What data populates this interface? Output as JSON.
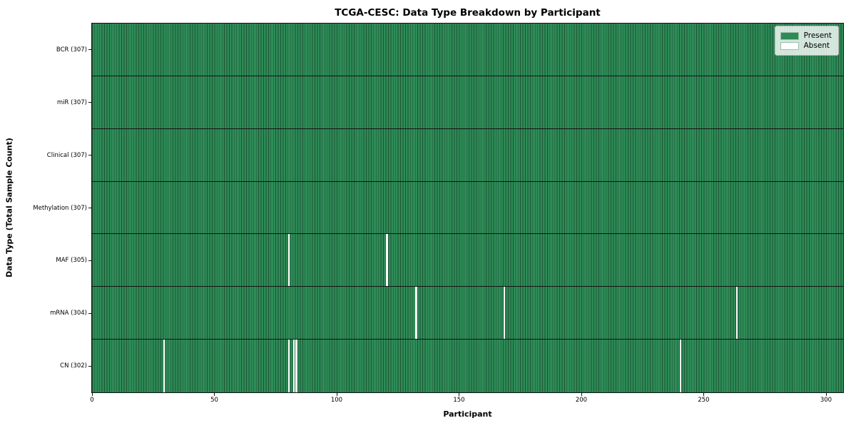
{
  "chart_data": {
    "type": "heatmap",
    "title": "TCGA-CESC: Data Type Breakdown by Participant",
    "xlabel": "Participant",
    "ylabel": "Data Type (Total Sample Count)",
    "xlim": [
      0,
      307
    ],
    "n_participants": 307,
    "x_ticks": [
      0,
      50,
      100,
      150,
      200,
      250,
      300
    ],
    "grid": false,
    "legend_position": "upper right",
    "legend": [
      {
        "label": "Present",
        "color": "#2e8b57"
      },
      {
        "label": "Absent",
        "color": "#ffffff"
      }
    ],
    "rows": [
      {
        "label": "BCR (307)",
        "data_type": "BCR",
        "present_count": 307,
        "absent_participants": []
      },
      {
        "label": "miR (307)",
        "data_type": "miR",
        "present_count": 307,
        "absent_participants": []
      },
      {
        "label": "Clinical (307)",
        "data_type": "Clinical",
        "present_count": 307,
        "absent_participants": []
      },
      {
        "label": "Methylation (307)",
        "data_type": "Methylation",
        "present_count": 307,
        "absent_participants": []
      },
      {
        "label": "MAF (305)",
        "data_type": "MAF",
        "present_count": 305,
        "absent_participants": [
          80,
          120
        ]
      },
      {
        "label": "mRNA (304)",
        "data_type": "mRNA",
        "present_count": 304,
        "absent_participants": [
          132,
          168,
          263
        ]
      },
      {
        "label": "CN (302)",
        "data_type": "CN",
        "present_count": 302,
        "absent_participants": [
          29,
          80,
          82,
          83,
          240
        ]
      }
    ],
    "colors": {
      "present": "#2e8b57",
      "absent": "#ffffff",
      "cell_edge": "#1c5434",
      "row_separator": "#141414",
      "plot_border": "#111111"
    }
  }
}
